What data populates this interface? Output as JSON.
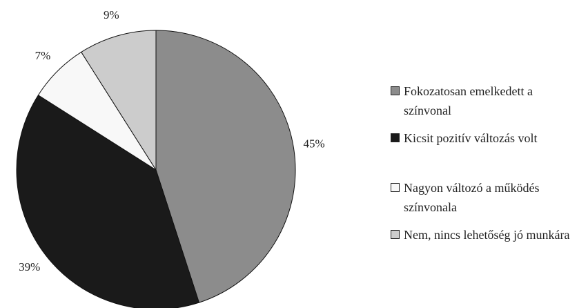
{
  "chart_data": {
    "type": "pie",
    "categories": [
      "Fokozatosan emelkedett a színvonal",
      "Kicsit pozitív változás volt",
      "Nagyon változó a működés színvonala",
      "Nem, nincs lehetőség jó munkára"
    ],
    "values": [
      45,
      39,
      7,
      9
    ],
    "value_labels": [
      "45%",
      "39%",
      "7%",
      "9%"
    ],
    "colors": [
      "#8c8c8c",
      "#1a1a1a",
      "#f8f8f8",
      "#cccccc"
    ],
    "legend": "right"
  }
}
